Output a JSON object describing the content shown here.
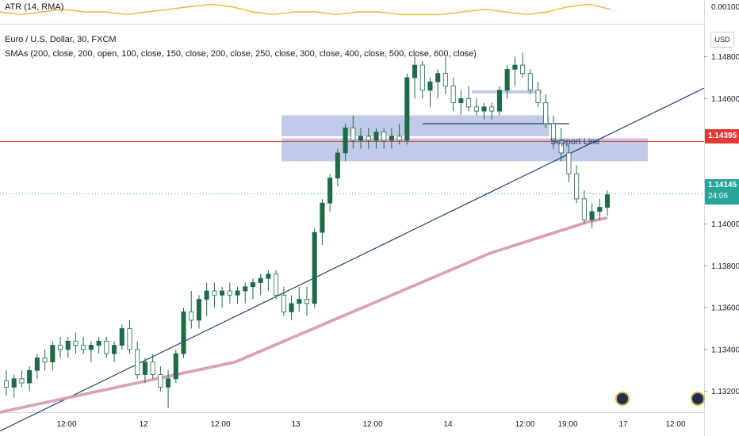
{
  "legend": {
    "atr": "ATR (14, RMA)",
    "title": "Euro / U.S. Dollar, 30, FXCM",
    "smas": "SMAs (200, close, 200, open, 100, close, 150, close, 200, close, 250, close, 300, close, 400, close, 500, close, 600, close)"
  },
  "axis": {
    "currency": "USD",
    "atr_tick": "0.00100",
    "price_ticks": [
      "1.14800",
      "1.14600",
      "1.14200",
      "1.14000",
      "1.13800",
      "1.13600",
      "1.13400",
      "1.13200"
    ],
    "time_ticks": [
      "12:00",
      "12",
      "12:00",
      "13",
      "12:00",
      "14",
      "12:00",
      "19:00",
      "17",
      "12:00"
    ]
  },
  "price_tags": {
    "support_price": "1.14395",
    "last_price": "1.14145",
    "countdown": "24:06"
  },
  "annotation": "Support Line",
  "colors": {
    "up": "#26a69a",
    "down": "#ef5350",
    "candle": "#1e6b45",
    "sma": "#e57d8e",
    "trend": "#1c3c6e",
    "atr": "#f5b041",
    "zone": "#b2bde3",
    "support": "#e53935"
  },
  "chart_data": {
    "type": "candlestick",
    "title": "Euro / U.S. Dollar, 30, FXCM",
    "ylim": [
      1.131,
      1.1495
    ],
    "x_labels": [
      "12:00",
      "12",
      "12:00",
      "13",
      "12:00",
      "14",
      "12:00",
      "19:00",
      "17",
      "12:00"
    ],
    "candles": [
      [
        1.1325,
        1.133,
        1.1318,
        1.1322
      ],
      [
        1.1322,
        1.1328,
        1.1317,
        1.1326
      ],
      [
        1.1326,
        1.133,
        1.1322,
        1.1324
      ],
      [
        1.1324,
        1.1332,
        1.132,
        1.133
      ],
      [
        1.133,
        1.1338,
        1.1326,
        1.1336
      ],
      [
        1.1336,
        1.134,
        1.133,
        1.1334
      ],
      [
        1.1334,
        1.1344,
        1.133,
        1.1342
      ],
      [
        1.1342,
        1.1346,
        1.1336,
        1.134
      ],
      [
        1.134,
        1.1346,
        1.1336,
        1.1344
      ],
      [
        1.1344,
        1.1348,
        1.1338,
        1.1342
      ],
      [
        1.1342,
        1.1346,
        1.1338,
        1.134
      ],
      [
        1.134,
        1.1344,
        1.1334,
        1.1342
      ],
      [
        1.1342,
        1.1346,
        1.1338,
        1.1344
      ],
      [
        1.1344,
        1.1346,
        1.1336,
        1.1338
      ],
      [
        1.1338,
        1.1344,
        1.1334,
        1.1342
      ],
      [
        1.1342,
        1.1352,
        1.134,
        1.135
      ],
      [
        1.135,
        1.1354,
        1.1338,
        1.134
      ],
      [
        1.134,
        1.1344,
        1.1326,
        1.1328
      ],
      [
        1.1328,
        1.1336,
        1.1324,
        1.1334
      ],
      [
        1.1334,
        1.1338,
        1.1326,
        1.1328
      ],
      [
        1.1328,
        1.1332,
        1.132,
        1.1322
      ],
      [
        1.1322,
        1.133,
        1.1312,
        1.1326
      ],
      [
        1.1326,
        1.134,
        1.1324,
        1.1338
      ],
      [
        1.1338,
        1.136,
        1.1336,
        1.1358
      ],
      [
        1.1358,
        1.1368,
        1.135,
        1.1354
      ],
      [
        1.1354,
        1.1366,
        1.135,
        1.1364
      ],
      [
        1.1364,
        1.1372,
        1.1356,
        1.1368
      ],
      [
        1.1368,
        1.1372,
        1.136,
        1.1366
      ],
      [
        1.1366,
        1.137,
        1.136,
        1.1368
      ],
      [
        1.1368,
        1.1372,
        1.1362,
        1.1366
      ],
      [
        1.1366,
        1.137,
        1.1362,
        1.1368
      ],
      [
        1.1368,
        1.1372,
        1.1362,
        1.137
      ],
      [
        1.137,
        1.1374,
        1.1364,
        1.1372
      ],
      [
        1.1372,
        1.1376,
        1.1366,
        1.1374
      ],
      [
        1.1374,
        1.1378,
        1.1368,
        1.1376
      ],
      [
        1.1376,
        1.1378,
        1.1364,
        1.1366
      ],
      [
        1.1366,
        1.137,
        1.1356,
        1.1358
      ],
      [
        1.1358,
        1.1366,
        1.1354,
        1.1362
      ],
      [
        1.1362,
        1.137,
        1.1358,
        1.1364
      ],
      [
        1.1364,
        1.137,
        1.1356,
        1.1362
      ],
      [
        1.1362,
        1.1398,
        1.136,
        1.1396
      ],
      [
        1.1396,
        1.1412,
        1.139,
        1.141
      ],
      [
        1.141,
        1.1424,
        1.1406,
        1.1422
      ],
      [
        1.1422,
        1.1436,
        1.1418,
        1.1434
      ],
      [
        1.1434,
        1.1448,
        1.143,
        1.1446
      ],
      [
        1.1446,
        1.1452,
        1.1436,
        1.144
      ],
      [
        1.144,
        1.1446,
        1.1436,
        1.1442
      ],
      [
        1.1442,
        1.1446,
        1.1436,
        1.144
      ],
      [
        1.144,
        1.1446,
        1.1436,
        1.1444
      ],
      [
        1.1444,
        1.1446,
        1.1436,
        1.144
      ],
      [
        1.144,
        1.1446,
        1.1436,
        1.1442
      ],
      [
        1.1442,
        1.1448,
        1.1438,
        1.144
      ],
      [
        1.144,
        1.1472,
        1.1438,
        1.147
      ],
      [
        1.147,
        1.148,
        1.146,
        1.1476
      ],
      [
        1.1476,
        1.1478,
        1.146,
        1.1464
      ],
      [
        1.1464,
        1.147,
        1.1456,
        1.1468
      ],
      [
        1.1468,
        1.1474,
        1.146,
        1.1472
      ],
      [
        1.1472,
        1.148,
        1.1462,
        1.1466
      ],
      [
        1.1466,
        1.147,
        1.1454,
        1.1458
      ],
      [
        1.1458,
        1.1464,
        1.1452,
        1.146
      ],
      [
        1.146,
        1.1466,
        1.1454,
        1.1456
      ],
      [
        1.1456,
        1.146,
        1.1452,
        1.1454
      ],
      [
        1.1454,
        1.1458,
        1.145,
        1.1456
      ],
      [
        1.1456,
        1.1458,
        1.145,
        1.1454
      ],
      [
        1.1454,
        1.1466,
        1.1452,
        1.1464
      ],
      [
        1.1464,
        1.1476,
        1.146,
        1.1474
      ],
      [
        1.1474,
        1.148,
        1.1466,
        1.1476
      ],
      [
        1.1476,
        1.1482,
        1.147,
        1.1472
      ],
      [
        1.1472,
        1.1474,
        1.1462,
        1.1464
      ],
      [
        1.1464,
        1.1468,
        1.1456,
        1.1458
      ],
      [
        1.1458,
        1.1462,
        1.1446,
        1.1448
      ],
      [
        1.1448,
        1.1452,
        1.1436,
        1.144
      ],
      [
        1.144,
        1.1446,
        1.143,
        1.1434
      ],
      [
        1.1434,
        1.1438,
        1.142,
        1.1424
      ],
      [
        1.1424,
        1.1428,
        1.141,
        1.1412
      ],
      [
        1.1412,
        1.1416,
        1.14,
        1.1402
      ],
      [
        1.1402,
        1.141,
        1.1398,
        1.1406
      ],
      [
        1.1406,
        1.1412,
        1.1402,
        1.1408
      ],
      [
        1.1408,
        1.1416,
        1.1404,
        1.1414
      ]
    ],
    "sma_series": [
      [
        1.131,
        1.1312,
        1.1314,
        1.1316,
        1.1318,
        1.132,
        1.1322,
        1.1324,
        1.1326,
        1.1328,
        1.133,
        1.1332,
        1.1334,
        1.1338,
        1.1342,
        1.1346,
        1.135,
        1.1354,
        1.1358,
        1.1362,
        1.1366,
        1.137,
        1.1374,
        1.1378,
        1.1382,
        1.1386,
        1.1389,
        1.1392,
        1.1395,
        1.1398,
        1.1401,
        1.1403
      ]
    ],
    "trendline": [
      [
        0,
        1.1301
      ],
      [
        1,
        1.1465
      ]
    ],
    "support_line": 1.14395,
    "last_price": 1.14145,
    "zones": [
      {
        "from": 0.4,
        "to": 0.78,
        "top": 1.1452,
        "bottom": 1.1442
      },
      {
        "from": 0.4,
        "to": 0.92,
        "top": 1.1441,
        "bottom": 1.143
      },
      {
        "from": 0.67,
        "to": 0.77,
        "top": 1.1464,
        "bottom": 1.1463
      }
    ],
    "atr": [
      0.0012,
      0.0011,
      0.0012,
      0.0013,
      0.0012,
      0.0012,
      0.0011,
      0.0012,
      0.0013,
      0.0014,
      0.0015,
      0.0014,
      0.0012,
      0.0011,
      0.0012,
      0.0012,
      0.0011,
      0.0012,
      0.0012,
      0.0011,
      0.0011,
      0.0011,
      0.0012,
      0.0013,
      0.0012,
      0.0011,
      0.0012,
      0.0014,
      0.0015,
      0.0013
    ],
    "atr_tick": 0.001
  }
}
